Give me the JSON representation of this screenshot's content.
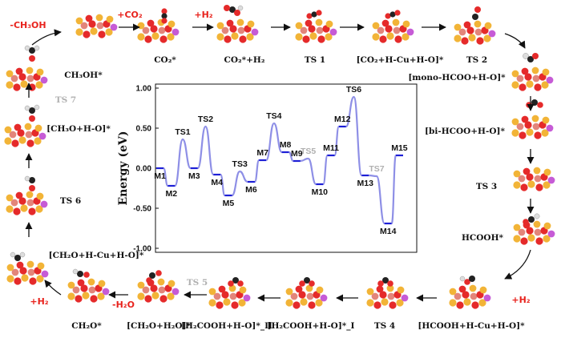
{
  "cycle": {
    "states": [
      "CO₂*",
      "CO₂*+H₂",
      "TS 1",
      "[CO₂+H-Cu+H-O]*",
      "TS 2",
      "[mono-HCOO+H-O]*",
      "[bi-HCOO+H-O]*",
      "TS 3",
      "HCOOH*",
      "[HCOOH+H-Cu+H-O]*",
      "TS 4",
      "[H₂COOH+H-O]*_I",
      "[H₂COOH+H-O]*_II",
      "TS 5",
      "[CH₂O+H₂O]*",
      "CH₂O*",
      "[CH₂O+H-Cu+H-O]*",
      "TS 6",
      "[CH₃O+H-O]*",
      "TS 7",
      "CH₃OH*"
    ],
    "steps": [
      "-CH₃OH",
      "+CO₂",
      "+H₂",
      "+H₂",
      "-H₂O",
      "+H₂"
    ],
    "colors": {
      "step_text": "#e8231d",
      "faded_text": "#b0b0b0",
      "arrow": "#111111"
    }
  },
  "chart_data": {
    "type": "line",
    "ylabel": "Energy (eV)",
    "ylim": [
      -1.05,
      1.05
    ],
    "yticks": [
      "1.00",
      "0.50",
      "0.00",
      "-0.50",
      "-1.00"
    ],
    "ytick_values": [
      1.0,
      0.5,
      0.0,
      -0.5,
      -1.0
    ],
    "grid": false,
    "line_colors": {
      "plateau": "#1d1fd6",
      "transition": "#8e8fe6"
    },
    "levels": [
      {
        "label": "M1",
        "y": 0.0
      },
      {
        "label": "M2",
        "y": -0.22
      },
      {
        "label": "TS1",
        "y": 0.36
      },
      {
        "label": "M3",
        "y": 0.0
      },
      {
        "label": "TS2",
        "y": 0.52
      },
      {
        "label": "M4",
        "y": -0.08
      },
      {
        "label": "M5",
        "y": -0.34
      },
      {
        "label": "TS3",
        "y": -0.04
      },
      {
        "label": "M6",
        "y": -0.17
      },
      {
        "label": "M7",
        "y": 0.1
      },
      {
        "label": "TS4",
        "y": 0.56
      },
      {
        "label": "M8",
        "y": 0.2
      },
      {
        "label": "M9",
        "y": 0.09
      },
      {
        "label": "TS5",
        "y": 0.12
      },
      {
        "label": "M10",
        "y": -0.2
      },
      {
        "label": "M11",
        "y": 0.16
      },
      {
        "label": "M12",
        "y": 0.52
      },
      {
        "label": "TS6",
        "y": 0.89
      },
      {
        "label": "M13",
        "y": -0.09
      },
      {
        "label": "TS7",
        "y": -0.1
      },
      {
        "label": "M14",
        "y": -0.69
      },
      {
        "label": "M15",
        "y": 0.16
      }
    ]
  }
}
